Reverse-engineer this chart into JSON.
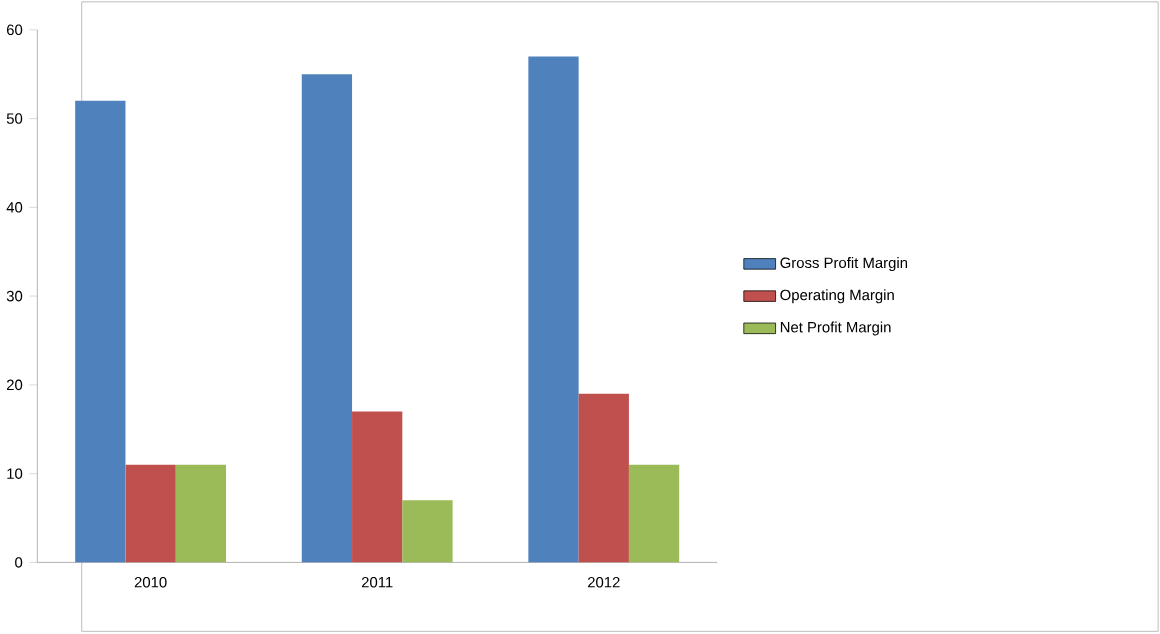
{
  "chart_data": {
    "type": "bar",
    "categories": [
      "2010",
      "2011",
      "2012"
    ],
    "series": [
      {
        "name": "Gross Profit Margin",
        "color": "#4f81bd",
        "values": [
          52,
          55,
          57
        ]
      },
      {
        "name": "Operating Margin",
        "color": "#c0504d",
        "values": [
          11,
          17,
          19
        ]
      },
      {
        "name": "Net Profit Margin",
        "color": "#9bbb59",
        "values": [
          11,
          7,
          11
        ]
      }
    ],
    "ylim": [
      0,
      60
    ],
    "yticks": [
      0,
      10,
      20,
      30,
      40,
      50,
      60
    ],
    "grid": false,
    "legend": "right"
  }
}
